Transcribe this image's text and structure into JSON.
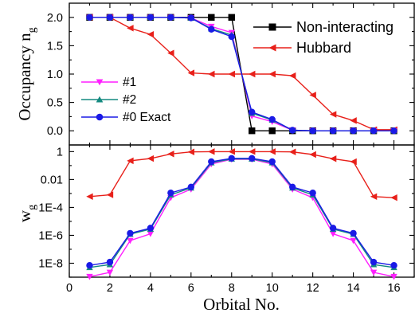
{
  "chart_data": [
    {
      "panel": "top",
      "type": "line",
      "ylabel": "Occupancy n",
      "ylabel_sub": "g",
      "xlim": [
        0,
        17
      ],
      "ylim": [
        -0.25,
        2.25
      ],
      "yticks": [
        0.0,
        0.5,
        1.0,
        1.5,
        2.0
      ],
      "ytick_labels": [
        "0.0",
        "0.5",
        "1.0",
        "1.5",
        "2.0"
      ],
      "legend_upper_right": [
        "Non-interacting",
        "Hubbard"
      ],
      "legend_left": [
        "#1",
        "#2",
        "#0 Exact"
      ],
      "series": [
        {
          "name": "Non-interacting",
          "color": "#000000",
          "marker": "square",
          "x": [
            1,
            2,
            3,
            4,
            5,
            6,
            7,
            8,
            9,
            10,
            11,
            12,
            13,
            14,
            15,
            16
          ],
          "y": [
            2,
            2,
            2,
            2,
            2,
            2,
            2,
            2,
            0,
            0,
            0,
            0,
            0,
            0,
            0,
            0
          ]
        },
        {
          "name": "Hubbard",
          "color": "#e8201a",
          "marker": "triangle-left",
          "x": [
            1,
            2,
            3,
            4,
            5,
            6,
            7,
            8,
            9,
            10,
            11,
            12,
            13,
            14,
            15,
            16
          ],
          "y": [
            2.0,
            2.0,
            1.81,
            1.7,
            1.37,
            1.02,
            1.0,
            1.0,
            1.0,
            1.0,
            0.97,
            0.63,
            0.29,
            0.18,
            0.02,
            0.02
          ]
        },
        {
          "name": "#1",
          "color": "#ff1fff",
          "marker": "triangle-down",
          "x": [
            1,
            2,
            3,
            4,
            5,
            6,
            7,
            8,
            9,
            10,
            11,
            12,
            13,
            14,
            15,
            16
          ],
          "y": [
            2.0,
            2.0,
            2.0,
            2.0,
            2.0,
            1.99,
            1.84,
            1.73,
            0.26,
            0.16,
            0.01,
            0.0,
            0.0,
            0.0,
            0.0,
            0.0
          ]
        },
        {
          "name": "#2",
          "color": "#148a80",
          "marker": "triangle-up",
          "x": [
            1,
            2,
            3,
            4,
            5,
            6,
            7,
            8,
            9,
            10,
            11,
            12,
            13,
            14,
            15,
            16
          ],
          "y": [
            2.0,
            2.0,
            2.0,
            2.0,
            2.0,
            1.99,
            1.8,
            1.69,
            0.31,
            0.19,
            0.01,
            0.0,
            0.0,
            0.0,
            0.0,
            0.0
          ]
        },
        {
          "name": "#0 Exact",
          "color": "#1a1ae6",
          "marker": "circle",
          "x": [
            1,
            2,
            3,
            4,
            5,
            6,
            7,
            8,
            9,
            10,
            11,
            12,
            13,
            14,
            15,
            16
          ],
          "y": [
            2.0,
            2.0,
            2.0,
            2.0,
            2.0,
            1.99,
            1.79,
            1.66,
            0.33,
            0.2,
            0.01,
            0.0,
            0.0,
            0.0,
            0.0,
            0.0
          ]
        }
      ]
    },
    {
      "panel": "bottom",
      "type": "line",
      "ylabel": "w",
      "ylabel_sub": "g",
      "xlabel": "Orbital No.",
      "yscale": "log",
      "xlim": [
        0,
        17
      ],
      "ylim": [
        1e-09,
        3
      ],
      "xticks": [
        0,
        2,
        4,
        6,
        8,
        10,
        12,
        14,
        16
      ],
      "xtick_labels": [
        "0",
        "2",
        "4",
        "6",
        "8",
        "10",
        "12",
        "14",
        "16"
      ],
      "yticks": [
        1e-08,
        1e-06,
        0.0001,
        0.01,
        1
      ],
      "ytick_labels": [
        "1E-8",
        "1E-6",
        "1E-4",
        "0.01",
        "1"
      ],
      "series": [
        {
          "name": "Hubbard",
          "color": "#e8201a",
          "marker": "triangle-left",
          "x": [
            1,
            2,
            3,
            4,
            5,
            6,
            7,
            8,
            9,
            10,
            11,
            12,
            13,
            14,
            15,
            16
          ],
          "y": [
            0.0006,
            0.0008,
            0.22,
            0.32,
            0.68,
            0.95,
            1.0,
            1.0,
            1.0,
            1.0,
            0.95,
            0.62,
            0.31,
            0.19,
            0.0006,
            0.0005
          ]
        },
        {
          "name": "#1",
          "color": "#ff1fff",
          "marker": "triangle-down",
          "x": [
            1,
            2,
            3,
            4,
            5,
            6,
            7,
            8,
            9,
            10,
            11,
            12,
            13,
            14,
            15,
            16
          ],
          "y": [
            1.1e-09,
            2.2e-09,
            4.2e-07,
            1.3e-06,
            0.0005,
            0.002,
            0.13,
            0.28,
            0.28,
            0.13,
            0.002,
            0.0005,
            1.3e-06,
            4.2e-07,
            2.2e-09,
            1.1e-09
          ]
        },
        {
          "name": "#2",
          "color": "#148a80",
          "marker": "triangle-up",
          "x": [
            1,
            2,
            3,
            4,
            5,
            6,
            7,
            8,
            9,
            10,
            11,
            12,
            13,
            14,
            15,
            16
          ],
          "y": [
            5e-09,
            8e-09,
            1.2e-06,
            2.8e-06,
            0.0008,
            0.0025,
            0.16,
            0.3,
            0.3,
            0.16,
            0.0025,
            0.0008,
            2.8e-06,
            1.2e-06,
            8e-09,
            5e-09
          ]
        },
        {
          "name": "#0 Exact",
          "color": "#1a1ae6",
          "marker": "circle",
          "x": [
            1,
            2,
            3,
            4,
            5,
            6,
            7,
            8,
            9,
            10,
            11,
            12,
            13,
            14,
            15,
            16
          ],
          "y": [
            7e-09,
            1.2e-08,
            1.4e-06,
            3.3e-06,
            0.0011,
            0.0029,
            0.19,
            0.33,
            0.33,
            0.19,
            0.0029,
            0.0011,
            3.3e-06,
            1.4e-06,
            1.2e-08,
            7e-09
          ]
        }
      ]
    }
  ]
}
